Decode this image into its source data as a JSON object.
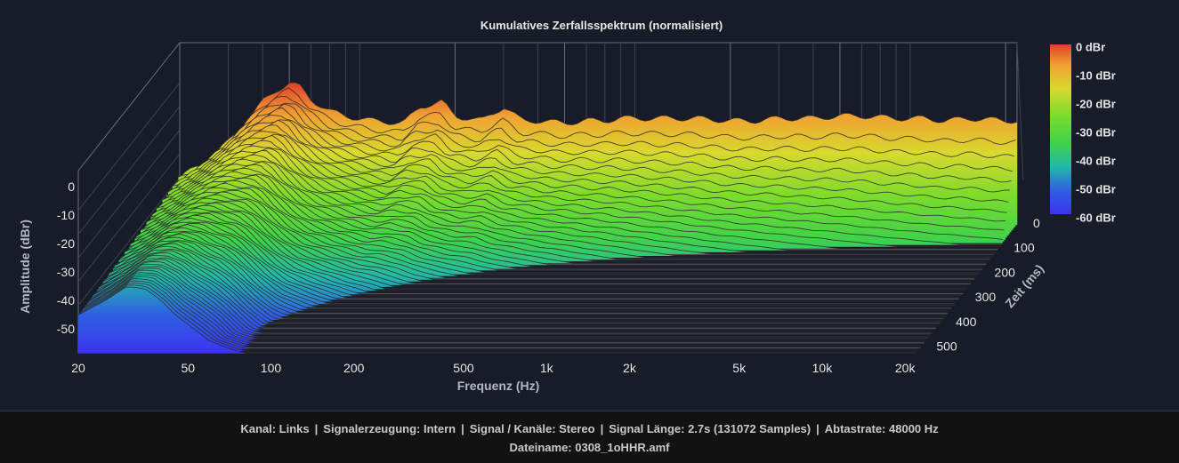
{
  "chart_data": {
    "type": "area",
    "title": "Kumulatives Zerfallsspektrum (normalisiert)",
    "xlabel": "Frequenz (Hz)",
    "ylabel": "Amplitude (dBr)",
    "zlabel": "Zeit (ms)",
    "x_scale": "log",
    "xlim": [
      20,
      22000
    ],
    "ylim": [
      -60,
      0
    ],
    "zlim": [
      0,
      520
    ],
    "x_ticks": [
      20,
      50,
      100,
      200,
      500,
      1000,
      2000,
      5000,
      10000,
      20000
    ],
    "x_tick_labels": [
      "20",
      "50",
      "100",
      "200",
      "500",
      "1k",
      "2k",
      "5k",
      "10k",
      "20k"
    ],
    "y_ticks": [
      0,
      -10,
      -20,
      -30,
      -40,
      -50
    ],
    "y_tick_labels": [
      "0",
      "-10",
      "-20",
      "-30",
      "-40",
      "-50"
    ],
    "z_ticks": [
      0,
      100,
      200,
      300,
      400,
      500
    ],
    "z_tick_labels": [
      "0",
      "100",
      "200",
      "300",
      "400",
      "500"
    ],
    "colorbar_labels": [
      "0 dBr",
      "-10 dBr",
      "-20 dBr",
      "-30 dBr",
      "-40 dBr",
      "-50 dBr",
      "-60 dBr"
    ],
    "colorbar_colors": [
      "#e04a33",
      "#f0a030",
      "#d8d830",
      "#60d830",
      "#18c8b8",
      "#2d5ae0",
      "#3a3af0"
    ],
    "series": [
      {
        "time_ms": 0,
        "x": [
          20,
          25,
          30,
          35,
          40,
          45,
          50,
          55,
          60,
          70,
          80,
          100,
          130,
          150,
          180,
          200,
          250,
          300,
          350,
          400,
          500,
          600,
          700,
          800,
          1000,
          1200,
          1500,
          2000,
          2500,
          3000,
          4000,
          5000,
          6000,
          8000,
          10000,
          12000,
          15000,
          20000
        ],
        "values": [
          -40,
          -33,
          -25,
          -16,
          -8,
          -3,
          0,
          -2,
          -7,
          -12,
          -14,
          -16,
          -17,
          -10,
          -8,
          -14,
          -16,
          -10,
          -16,
          -16,
          -17,
          -16,
          -16,
          -15,
          -15,
          -15,
          -15,
          -16,
          -16,
          -15,
          -15,
          -14,
          -14,
          -15,
          -15,
          -16,
          -15,
          -16
        ]
      },
      {
        "time_ms": 500,
        "x": [
          20,
          25,
          30,
          35,
          40,
          45,
          50,
          60,
          70,
          80
        ],
        "values": [
          -44,
          -38,
          -32,
          -33,
          -38,
          -44,
          -48,
          -55,
          -58,
          -60
        ]
      }
    ]
  },
  "footer": {
    "kanal": "Kanal: Links",
    "signalerzeugung": "Signalerzeugung: Intern",
    "signal_kanaele": "Signal / Kanäle: Stereo",
    "signal_laenge": "Signal Länge: 2.7s (131072 Samples)",
    "abtastrate": "Abtastrate: 48000 Hz",
    "dateiname": "Dateiname: 0308_1oHHR.amf",
    "separator": "|"
  }
}
